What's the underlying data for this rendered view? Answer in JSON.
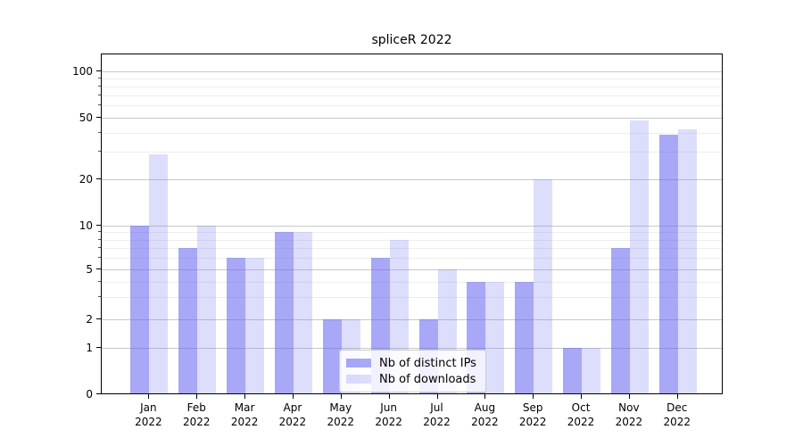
{
  "title": "spliceR 2022",
  "legend": {
    "items": [
      {
        "label": "Nb of distinct IPs",
        "series": "ips"
      },
      {
        "label": "Nb of downloads",
        "series": "downloads"
      }
    ],
    "position": "lower center"
  },
  "colors": {
    "ips_bar": "rgba(100,100,240,0.56)",
    "downloads_bar": "rgba(100,100,240,0.22)",
    "grid_major": "#c9c9c9",
    "grid_minor": "#ededed",
    "axis": "#000000",
    "background": "#ffffff"
  },
  "chart_data": {
    "type": "bar",
    "title": "spliceR 2022",
    "categories": [
      "Jan",
      "Feb",
      "Mar",
      "Apr",
      "May",
      "Jun",
      "Jul",
      "Aug",
      "Sep",
      "Oct",
      "Nov",
      "Dec"
    ],
    "year_label": "2022",
    "series": [
      {
        "name": "Nb of distinct IPs",
        "values": [
          10,
          7,
          6,
          9,
          2,
          6,
          2,
          4,
          4,
          1,
          7,
          39
        ]
      },
      {
        "name": "Nb of downloads",
        "values": [
          29,
          10,
          6,
          9,
          2,
          8,
          5,
          4,
          20,
          1,
          48,
          42
        ]
      }
    ],
    "xlabel": "",
    "ylabel": "",
    "yscale": "symlog",
    "ylim": [
      0,
      132
    ],
    "y_major_ticks": [
      0,
      1,
      2,
      5,
      10,
      20,
      50,
      100
    ],
    "y_minor_gridlines": [
      3,
      4,
      6,
      7,
      8,
      9,
      30,
      40,
      60,
      70,
      80,
      90
    ],
    "grid": "on",
    "legend_position": "lower center"
  }
}
